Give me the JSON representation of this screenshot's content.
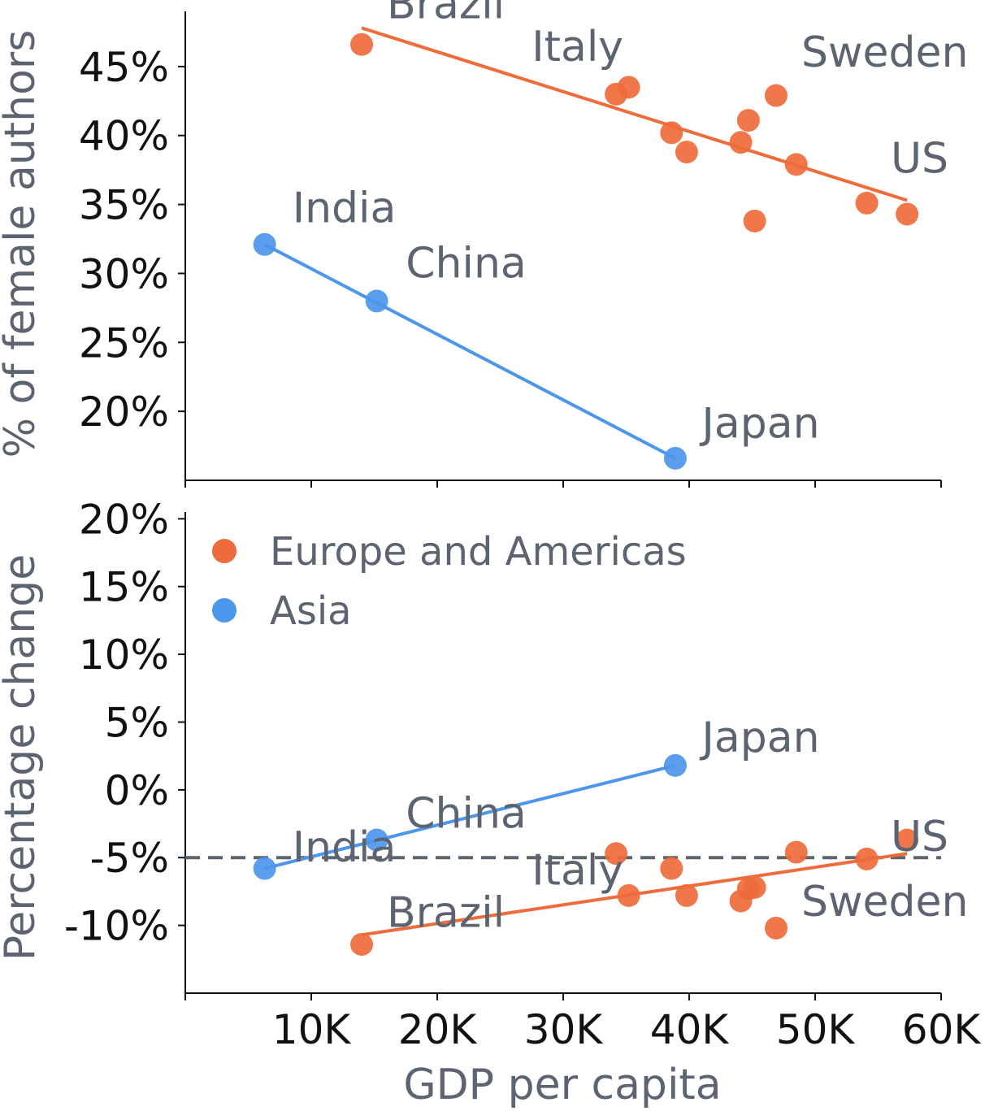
{
  "chart_data": [
    {
      "type": "scatter",
      "panel": "top",
      "ylabel": "% of female authors",
      "xlabel": "",
      "xlim": [
        0,
        60000
      ],
      "ylim": [
        15,
        49
      ],
      "y_ticks": [
        20,
        25,
        30,
        35,
        40,
        45
      ],
      "y_tick_labels": [
        "20%",
        "25%",
        "30%",
        "35%",
        "40%",
        "45%"
      ],
      "series": [
        {
          "name": "Europe and Americas",
          "color": "#ee6b3b",
          "points": [
            {
              "x": 14000,
              "y": 46.6,
              "label": "Brazil"
            },
            {
              "x": 34200,
              "y": 43.0,
              "label": ""
            },
            {
              "x": 35200,
              "y": 43.5,
              "label": ""
            },
            {
              "x": 38600,
              "y": 40.2,
              "label": ""
            },
            {
              "x": 39800,
              "y": 38.8,
              "label": ""
            },
            {
              "x": 44100,
              "y": 39.5,
              "label": ""
            },
            {
              "x": 44700,
              "y": 41.1,
              "label": ""
            },
            {
              "x": 45200,
              "y": 33.8,
              "label": ""
            },
            {
              "x": 46900,
              "y": 42.9,
              "label": ""
            },
            {
              "x": 48500,
              "y": 37.9,
              "label": ""
            },
            {
              "x": 54100,
              "y": 35.1,
              "label": ""
            },
            {
              "x": 57300,
              "y": 34.3,
              "label": ""
            }
          ],
          "trend": [
            [
              14000,
              47.8
            ],
            [
              57300,
              35.3
            ]
          ]
        },
        {
          "name": "Asia",
          "color": "#4c96ec",
          "points": [
            {
              "x": 6300,
              "y": 32.1,
              "label": ""
            },
            {
              "x": 15200,
              "y": 28.0,
              "label": ""
            },
            {
              "x": 38900,
              "y": 16.6,
              "label": ""
            }
          ],
          "trend": [
            [
              6300,
              32.1
            ],
            [
              38900,
              16.6
            ]
          ]
        }
      ],
      "annotations": [
        {
          "text": "Brazil",
          "x": 16000,
          "y": 48.5
        },
        {
          "text": "Italy",
          "x": 27500,
          "y": 45.4
        },
        {
          "text": "Sweden",
          "x": 48900,
          "y": 45.0
        },
        {
          "text": "US",
          "x": 56000,
          "y": 37.3
        },
        {
          "text": "India",
          "x": 8500,
          "y": 33.7
        },
        {
          "text": "China",
          "x": 17500,
          "y": 29.7
        },
        {
          "text": "Japan",
          "x": 41000,
          "y": 18.1
        }
      ]
    },
    {
      "type": "scatter",
      "panel": "bottom",
      "ylabel": "Percentage change",
      "xlabel": "GDP per capita",
      "xlim": [
        0,
        60000
      ],
      "ylim": [
        -15,
        20.5
      ],
      "x_ticks": [
        10000,
        20000,
        30000,
        40000,
        50000,
        60000
      ],
      "x_tick_labels": [
        "10K",
        "20K",
        "30K",
        "40K",
        "50K",
        "60K"
      ],
      "y_ticks": [
        -10,
        -5,
        0,
        5,
        10,
        15,
        20
      ],
      "y_tick_labels": [
        "-10%",
        "-5%",
        "0%",
        "5%",
        "10%",
        "15%",
        "20%"
      ],
      "reference_line_y": -5,
      "legend_position": "top-left",
      "legend": [
        {
          "name": "Europe and Americas",
          "color": "#ee6b3b"
        },
        {
          "name": "Asia",
          "color": "#4c96ec"
        }
      ],
      "series": [
        {
          "name": "Europe and Americas",
          "color": "#ee6b3b",
          "points": [
            {
              "x": 14000,
              "y": -11.4
            },
            {
              "x": 34200,
              "y": -4.7
            },
            {
              "x": 35200,
              "y": -7.8
            },
            {
              "x": 38600,
              "y": -5.8
            },
            {
              "x": 39800,
              "y": -7.8
            },
            {
              "x": 44100,
              "y": -8.2
            },
            {
              "x": 44700,
              "y": -7.3
            },
            {
              "x": 45200,
              "y": -7.2
            },
            {
              "x": 46900,
              "y": -10.2
            },
            {
              "x": 48500,
              "y": -4.6
            },
            {
              "x": 54100,
              "y": -5.1
            },
            {
              "x": 57300,
              "y": -3.7
            }
          ],
          "trend": [
            [
              14000,
              -10.7
            ],
            [
              57300,
              -4.7
            ]
          ]
        },
        {
          "name": "Asia",
          "color": "#4c96ec",
          "points": [
            {
              "x": 6300,
              "y": -5.8
            },
            {
              "x": 15200,
              "y": -3.7
            },
            {
              "x": 38900,
              "y": 1.8
            }
          ],
          "trend": [
            [
              6300,
              -5.8
            ],
            [
              38900,
              1.8
            ]
          ]
        }
      ],
      "annotations": [
        {
          "text": "Japan",
          "x": 41000,
          "y": 2.8
        },
        {
          "text": "China",
          "x": 17500,
          "y": -2.8
        },
        {
          "text": "India",
          "x": 8500,
          "y": -5.3
        },
        {
          "text": "US",
          "x": 56000,
          "y": -4.5
        },
        {
          "text": "Italy",
          "x": 27500,
          "y": -7.0
        },
        {
          "text": "Brazil",
          "x": 16000,
          "y": -10.1
        },
        {
          "text": "Sweden",
          "x": 48900,
          "y": -9.3
        }
      ]
    }
  ]
}
